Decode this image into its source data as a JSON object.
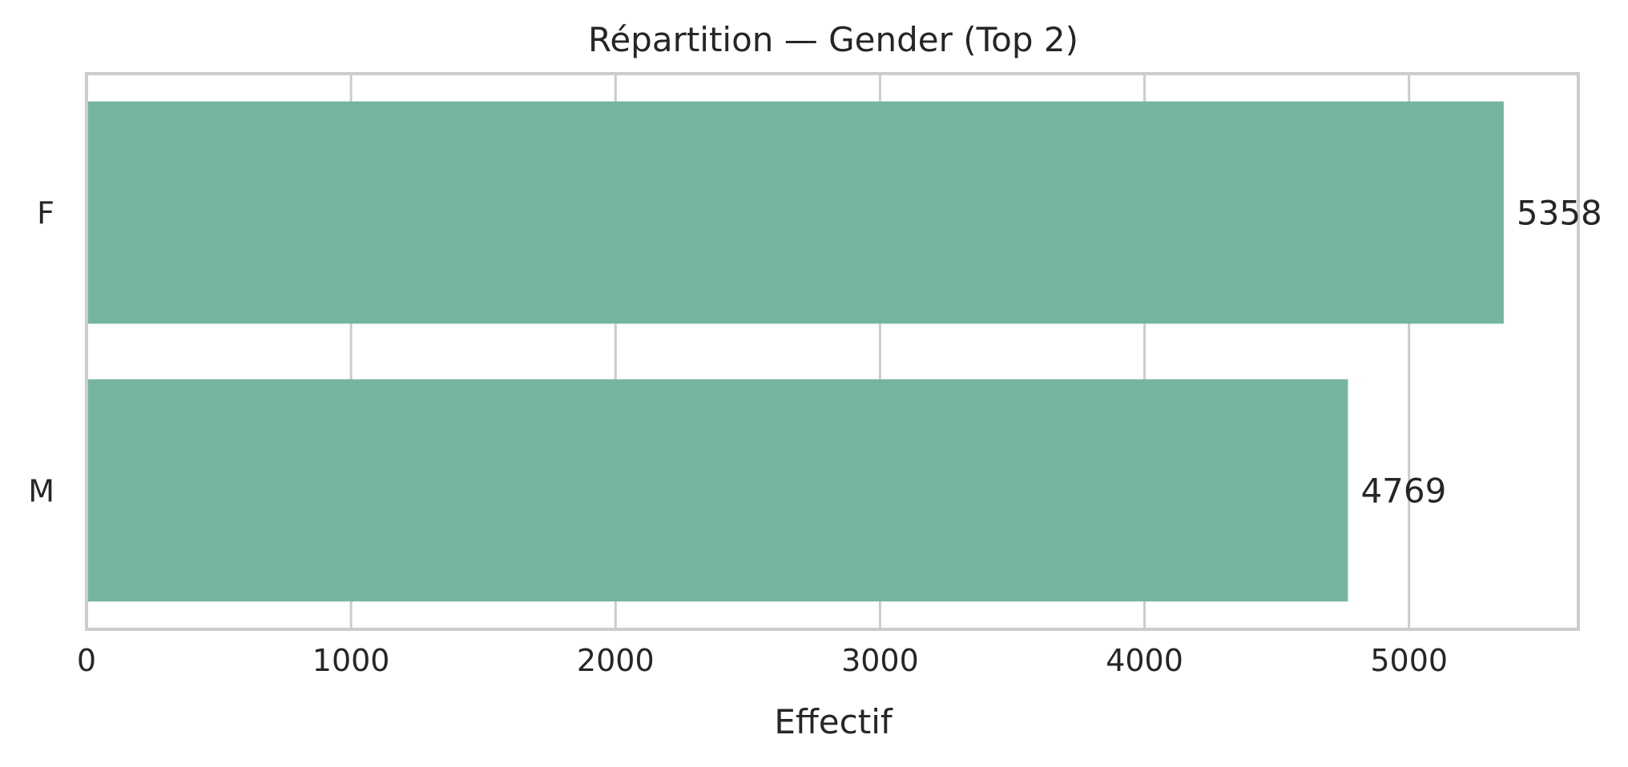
{
  "chart_data": {
    "type": "bar",
    "orientation": "horizontal",
    "title": "Répartition — Gender (Top 2)",
    "xlabel": "Effectif",
    "ylabel": "",
    "categories": [
      "F",
      "M"
    ],
    "values": [
      5358,
      4769
    ],
    "xlim": [
      0,
      5640
    ],
    "xticks": [
      0,
      1000,
      2000,
      3000,
      4000,
      5000
    ],
    "grid": "x",
    "legend": "none",
    "bar_color": "#75b5a0",
    "grid_color": "#cccccc"
  }
}
